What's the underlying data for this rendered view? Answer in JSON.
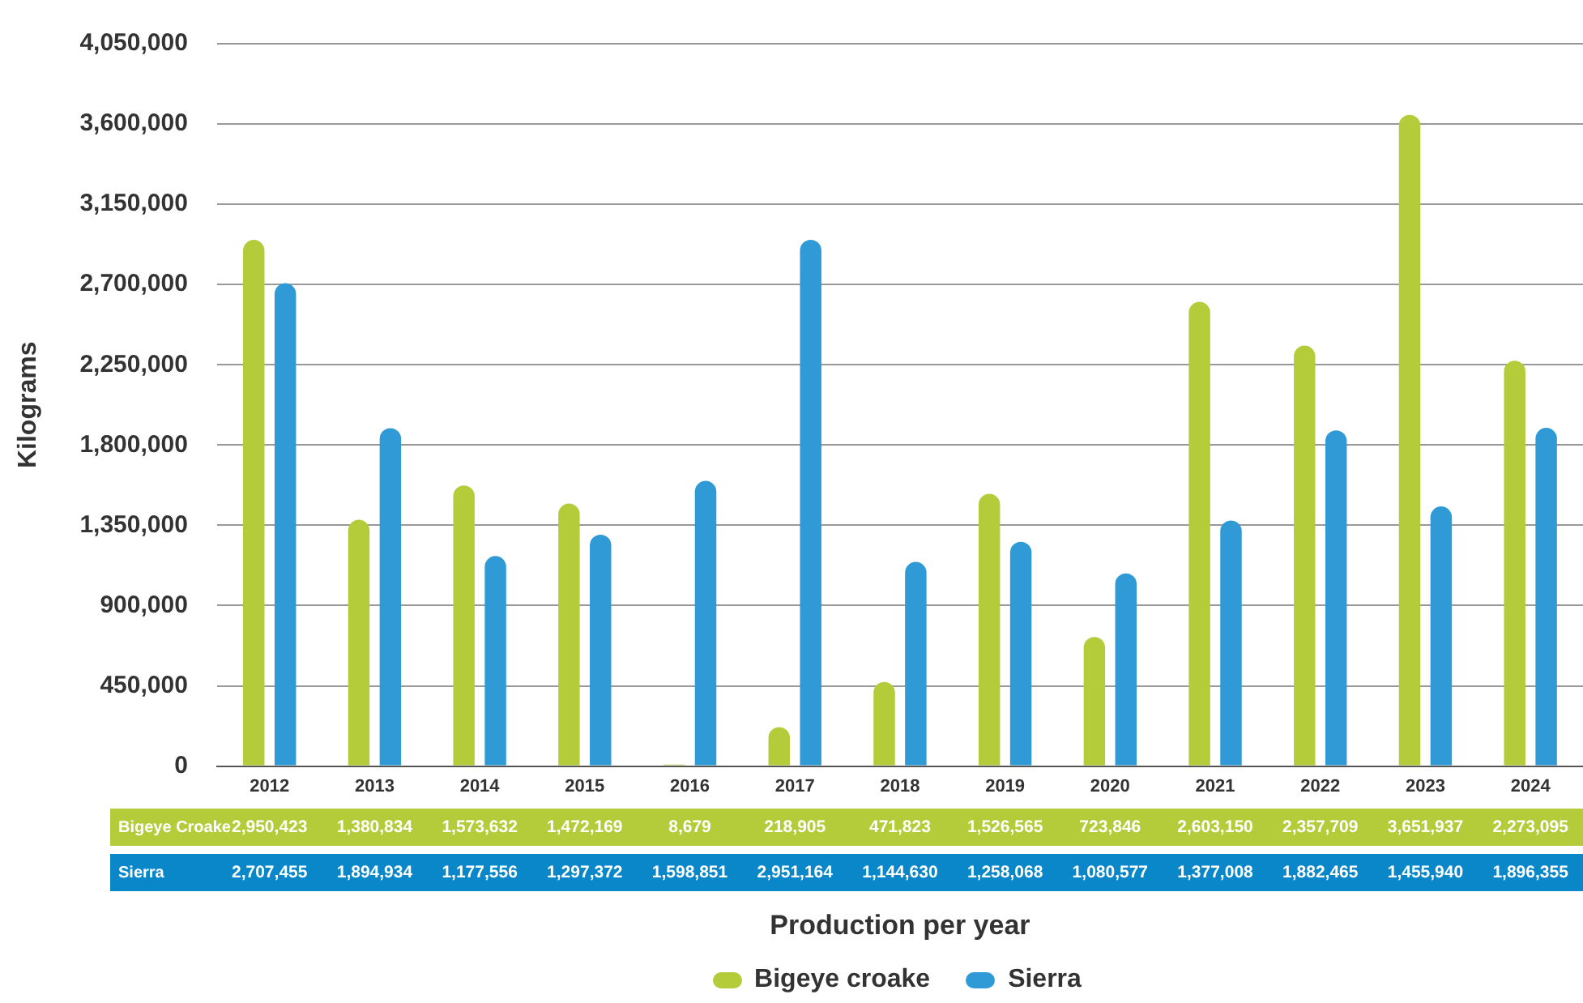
{
  "chart_data": {
    "type": "bar",
    "ylabel": "Kilograms",
    "categories": [
      "2012",
      "2013",
      "2014",
      "2015",
      "2016",
      "2017",
      "2018",
      "2019",
      "2020",
      "2021",
      "2022",
      "2023",
      "2024"
    ],
    "series": [
      {
        "name": "Bigeye croake",
        "color": "#b5cc3a",
        "values": [
          2950423,
          1380834,
          1573632,
          1472169,
          8679,
          218905,
          471823,
          1526565,
          723846,
          2603150,
          2357709,
          3651937,
          2273095
        ],
        "value_labels": [
          "2,950,423",
          "1,380,834",
          "1,573,632",
          "1,472,169",
          "8,679",
          "218,905",
          "471,823",
          "1,526,565",
          "723,846",
          "2,603,150",
          "2,357,709",
          "3,651,937",
          "2,273,095"
        ]
      },
      {
        "name": "Sierra",
        "color": "#2f9ad6",
        "values": [
          2707455,
          1894934,
          1177556,
          1297372,
          1598851,
          2951164,
          1144630,
          1258068,
          1080577,
          1377008,
          1882465,
          1455940,
          1896355
        ],
        "value_labels": [
          "2,707,455",
          "1,894,934",
          "1,177,556",
          "1,297,372",
          "1,598,851",
          "2,951,164",
          "1,144,630",
          "1,258,068",
          "1,080,577",
          "1,377,008",
          "1,882,465",
          "1,455,940",
          "1,896,355"
        ]
      }
    ],
    "ylim": [
      0,
      4050000
    ],
    "yticks": [
      0,
      {
        "value": 450000,
        "label": "450,000"
      },
      {
        "value": 900000,
        "label": "900,000"
      },
      {
        "value": 1350000,
        "label": "1,350,000"
      },
      {
        "value": 1800000,
        "label": "1,800,000"
      },
      {
        "value": 2250000,
        "label": "2,250,000"
      },
      {
        "value": 2700000,
        "label": "2,700,000"
      },
      {
        "value": 3150000,
        "label": "3,150,000"
      },
      {
        "value": 3600000,
        "label": "3,600,000"
      },
      {
        "value": 4050000,
        "label": "4,050,000"
      }
    ],
    "grid": "y",
    "legend": "bottom",
    "annotations": [
      "Bigeye Croake",
      "Sierra",
      "Production per year"
    ]
  }
}
